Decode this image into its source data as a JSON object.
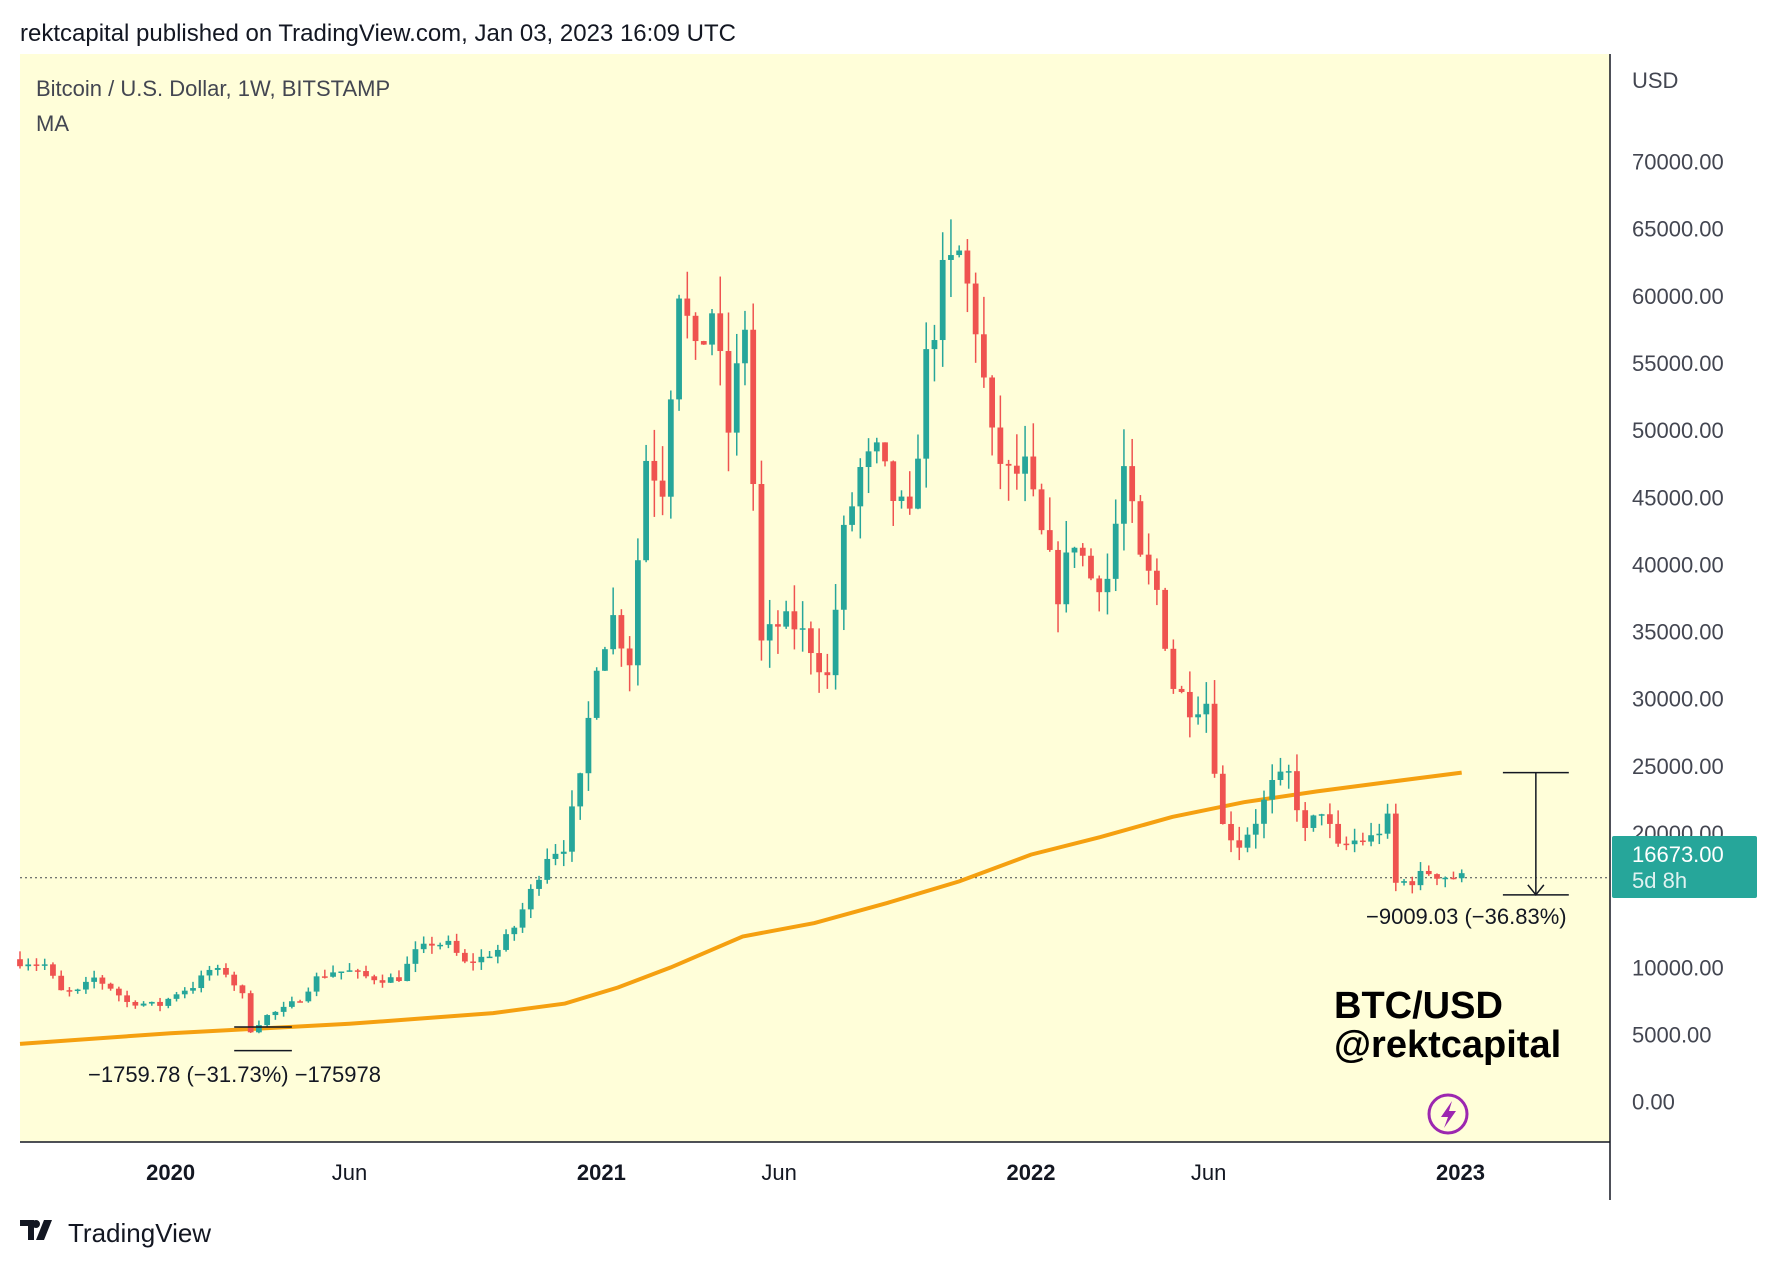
{
  "header": {
    "publish_line": "rektcapital published on TradingView.com, Jan 03, 2023 16:09 UTC"
  },
  "footer": {
    "logo_icon": "tradingview-logo-icon",
    "brand": "TradingView"
  },
  "chart_data": {
    "type": "candlestick",
    "symbol_line": "Bitcoin / U.S. Dollar, 1W, BITSTAMP",
    "indicator_label": "MA",
    "ylabel": "USD",
    "ylim": [
      -3000,
      78000
    ],
    "yticks": [
      "70000.00",
      "65000.00",
      "60000.00",
      "55000.00",
      "50000.00",
      "45000.00",
      "40000.00",
      "35000.00",
      "30000.00",
      "25000.00",
      "20000.00",
      "10000.00",
      "5000.00",
      "0.00"
    ],
    "ytick_values": [
      70000,
      65000,
      60000,
      55000,
      50000,
      45000,
      40000,
      35000,
      30000,
      25000,
      20000,
      10000,
      5000,
      0
    ],
    "xticks": [
      {
        "label": "2020",
        "date": "2020-01-01",
        "bold": true
      },
      {
        "label": "Jun",
        "date": "2020-06-01",
        "bold": false
      },
      {
        "label": "2021",
        "date": "2021-01-01",
        "bold": true
      },
      {
        "label": "Jun",
        "date": "2021-06-01",
        "bold": false
      },
      {
        "label": "2022",
        "date": "2022-01-01",
        "bold": true
      },
      {
        "label": "Jun",
        "date": "2022-06-01",
        "bold": false
      },
      {
        "label": "2023",
        "date": "2023-01-01",
        "bold": true
      }
    ],
    "xlim": [
      "2019-08-26",
      "2023-05-08"
    ],
    "last_price": {
      "value": "16673.00",
      "level": 16673,
      "countdown": "5d 8h",
      "color": "#26a69a"
    },
    "colors": {
      "up": "#26a69a",
      "down": "#ef5350",
      "ma": "#f5a010",
      "background": "#fffed9"
    },
    "weekly_closes": [
      [
        "2019-09-02",
        10400
      ],
      [
        "2019-09-16",
        10200
      ],
      [
        "2019-09-30",
        8200
      ],
      [
        "2019-10-14",
        8200
      ],
      [
        "2019-10-28",
        9200
      ],
      [
        "2019-11-11",
        8500
      ],
      [
        "2019-11-25",
        7400
      ],
      [
        "2019-12-09",
        7300
      ],
      [
        "2019-12-23",
        7200
      ],
      [
        "2020-01-06",
        8100
      ],
      [
        "2020-01-20",
        8600
      ],
      [
        "2020-02-03",
        9800
      ],
      [
        "2020-02-17",
        9600
      ],
      [
        "2020-03-02",
        7900
      ],
      [
        "2020-03-09",
        5300
      ],
      [
        "2020-03-23",
        6400
      ],
      [
        "2020-04-06",
        6900
      ],
      [
        "2020-04-20",
        7700
      ],
      [
        "2020-05-04",
        9200
      ],
      [
        "2020-05-18",
        9700
      ],
      [
        "2020-06-01",
        9700
      ],
      [
        "2020-06-15",
        9300
      ],
      [
        "2020-06-29",
        9100
      ],
      [
        "2020-07-13",
        9200
      ],
      [
        "2020-07-27",
        11100
      ],
      [
        "2020-08-10",
        11800
      ],
      [
        "2020-08-24",
        11700
      ],
      [
        "2020-09-07",
        10300
      ],
      [
        "2020-09-21",
        10700
      ],
      [
        "2020-10-05",
        11300
      ],
      [
        "2020-10-19",
        13000
      ],
      [
        "2020-11-02",
        15600
      ],
      [
        "2020-11-16",
        18400
      ],
      [
        "2020-11-30",
        19100
      ],
      [
        "2020-12-14",
        23800
      ],
      [
        "2020-12-28",
        33000
      ],
      [
        "2021-01-11",
        36000
      ],
      [
        "2021-01-25",
        33000
      ],
      [
        "2021-02-08",
        48000
      ],
      [
        "2021-02-22",
        46000
      ],
      [
        "2021-03-08",
        61000
      ],
      [
        "2021-03-22",
        55000
      ],
      [
        "2021-04-05",
        59000
      ],
      [
        "2021-04-19",
        50000
      ],
      [
        "2021-05-03",
        58000
      ],
      [
        "2021-05-17",
        34000
      ],
      [
        "2021-05-31",
        35500
      ],
      [
        "2021-06-14",
        35500
      ],
      [
        "2021-06-28",
        34000
      ],
      [
        "2021-07-12",
        31500
      ],
      [
        "2021-07-26",
        42000
      ],
      [
        "2021-08-09",
        47000
      ],
      [
        "2021-08-23",
        48000
      ],
      [
        "2021-09-06",
        45000
      ],
      [
        "2021-09-20",
        43000
      ],
      [
        "2021-10-04",
        55000
      ],
      [
        "2021-10-18",
        61000
      ],
      [
        "2021-11-01",
        63000
      ],
      [
        "2021-11-15",
        58000
      ],
      [
        "2021-11-29",
        49000
      ],
      [
        "2021-12-13",
        46500
      ],
      [
        "2021-12-27",
        47000
      ],
      [
        "2022-01-10",
        42000
      ],
      [
        "2022-01-24",
        38000
      ],
      [
        "2022-02-07",
        42000
      ],
      [
        "2022-02-21",
        39000
      ],
      [
        "2022-03-07",
        39000
      ],
      [
        "2022-03-21",
        47000
      ],
      [
        "2022-04-04",
        40000
      ],
      [
        "2022-04-18",
        38000
      ],
      [
        "2022-05-02",
        31000
      ],
      [
        "2022-05-16",
        29500
      ],
      [
        "2022-05-30",
        29800
      ],
      [
        "2022-06-13",
        20500
      ],
      [
        "2022-06-27",
        19200
      ],
      [
        "2022-07-11",
        21000
      ],
      [
        "2022-07-25",
        23500
      ],
      [
        "2022-08-08",
        24300
      ],
      [
        "2022-08-22",
        20000
      ],
      [
        "2022-09-05",
        21800
      ],
      [
        "2022-09-19",
        18800
      ],
      [
        "2022-10-03",
        19400
      ],
      [
        "2022-10-17",
        19600
      ],
      [
        "2022-10-31",
        20900
      ],
      [
        "2022-11-07",
        16200
      ],
      [
        "2022-11-21",
        16500
      ],
      [
        "2022-12-05",
        17100
      ],
      [
        "2022-12-19",
        16800
      ],
      [
        "2023-01-02",
        16673
      ]
    ],
    "ma_series": [
      [
        "2019-08-26",
        4300
      ],
      [
        "2020-01-01",
        5100
      ],
      [
        "2020-06-01",
        5800
      ],
      [
        "2020-10-01",
        6600
      ],
      [
        "2020-12-01",
        7300
      ],
      [
        "2021-01-15",
        8500
      ],
      [
        "2021-03-01",
        10000
      ],
      [
        "2021-05-01",
        12300
      ],
      [
        "2021-07-01",
        13300
      ],
      [
        "2021-09-01",
        14800
      ],
      [
        "2021-11-01",
        16400
      ],
      [
        "2022-01-01",
        18400
      ],
      [
        "2022-03-01",
        19700
      ],
      [
        "2022-05-01",
        21200
      ],
      [
        "2022-07-01",
        22300
      ],
      [
        "2022-09-01",
        23100
      ],
      [
        "2022-11-01",
        23800
      ],
      [
        "2023-01-02",
        24500
      ]
    ],
    "measure_2020": {
      "date_from": "2020-02-24",
      "date_to": "2020-04-13",
      "from": 5560,
      "to": 3800,
      "label": "−1759.78 (−31.73%) −175978"
    },
    "measure_2023": {
      "date_from": "2023-02-06",
      "date_to": "2023-04-03",
      "from": 24500,
      "to": 15400,
      "label": "−9009.03 (−36.83%)"
    },
    "annotation": {
      "line1": "BTC/USD",
      "line2": "@rektcapital"
    },
    "watermark_icon": "lightning-bolt-icon"
  }
}
